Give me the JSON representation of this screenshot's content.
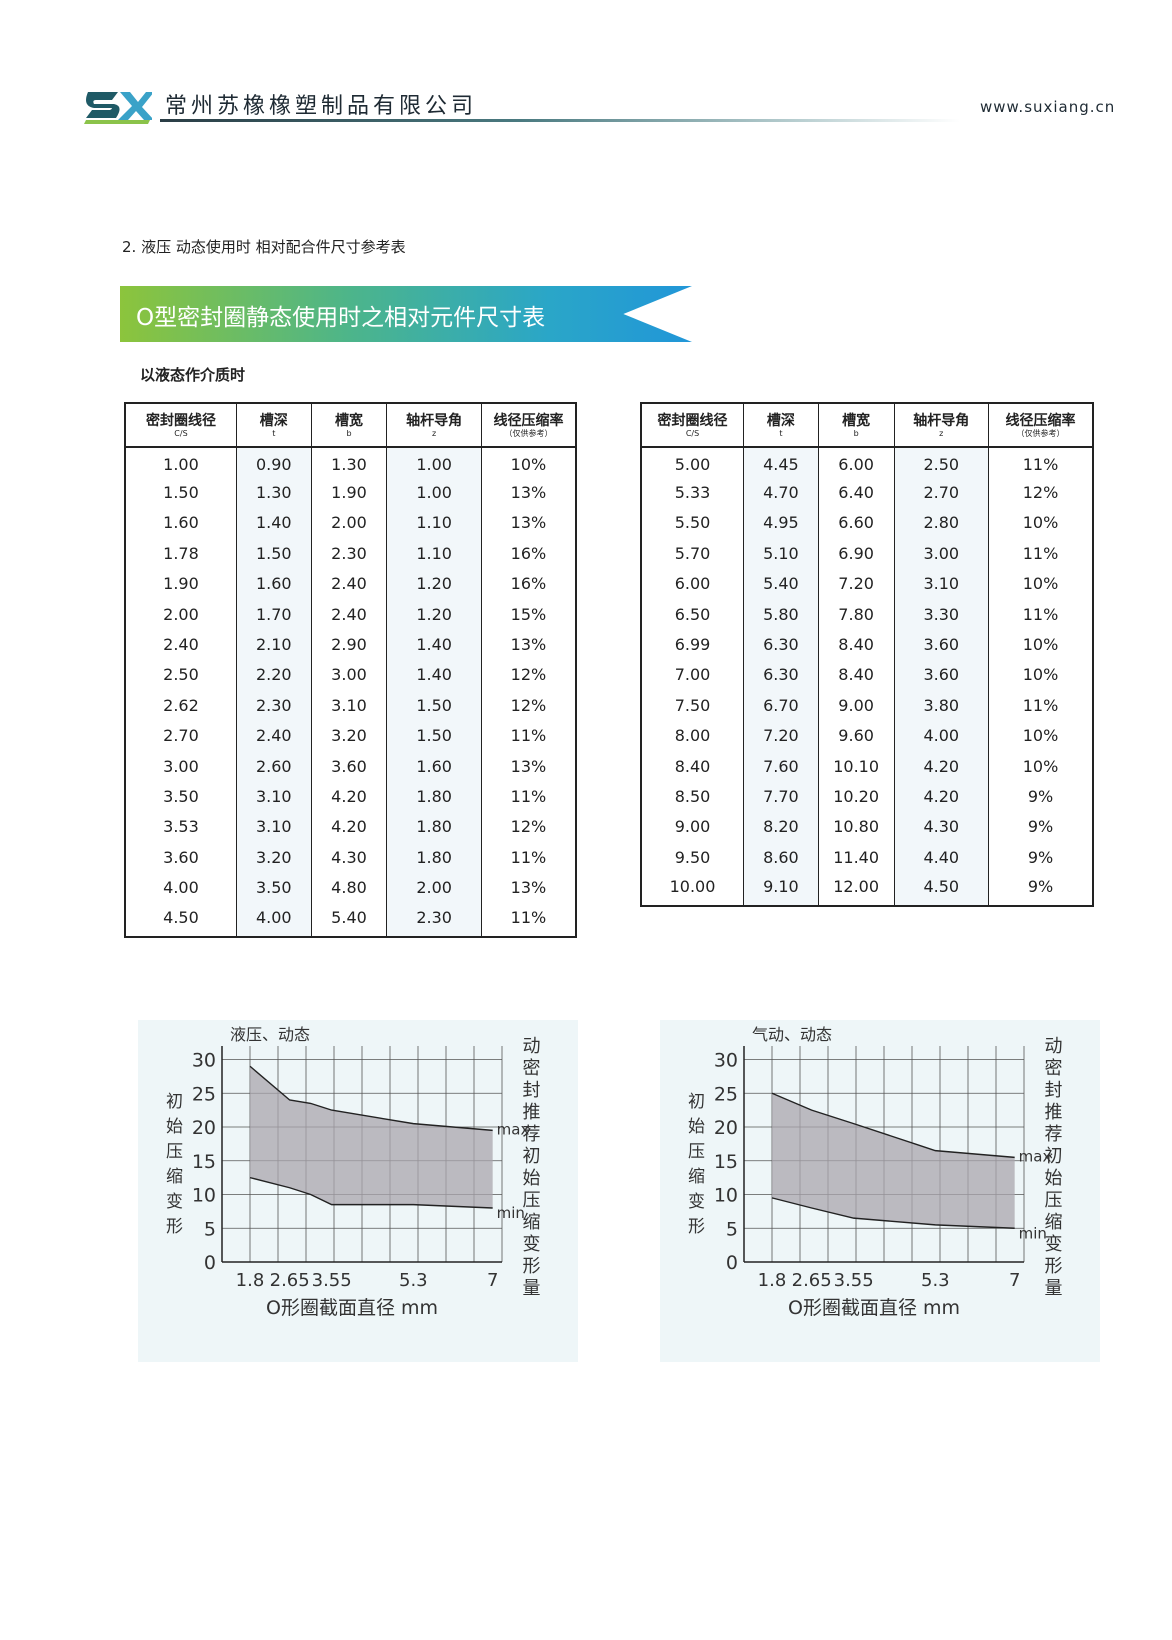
{
  "header": {
    "logo_text": "SX",
    "company_name": "常州苏橡橡塑制品有限公司",
    "website": "www.suxiang.cn"
  },
  "section_heading": "2. 液压  动态使用时  相对配合件尺寸参考表",
  "banner_title": "O型密封圈静态使用时之相对元件尺寸表",
  "medium_label": "以液态作介质时",
  "table_headers": [
    {
      "label": "密封圈线径",
      "sub": "C/S"
    },
    {
      "label": "槽深",
      "sub": "t"
    },
    {
      "label": "槽宽",
      "sub": "b"
    },
    {
      "label": "轴杆导角",
      "sub": "z"
    },
    {
      "label": "线径压缩率",
      "sub": "（仅供参考）"
    }
  ],
  "table_left": [
    [
      "1.00",
      "0.90",
      "1.30",
      "1.00",
      "10%"
    ],
    [
      "1.50",
      "1.30",
      "1.90",
      "1.00",
      "13%"
    ],
    [
      "1.60",
      "1.40",
      "2.00",
      "1.10",
      "13%"
    ],
    [
      "1.78",
      "1.50",
      "2.30",
      "1.10",
      "16%"
    ],
    [
      "1.90",
      "1.60",
      "2.40",
      "1.20",
      "16%"
    ],
    [
      "2.00",
      "1.70",
      "2.40",
      "1.20",
      "15%"
    ],
    [
      "2.40",
      "2.10",
      "2.90",
      "1.40",
      "13%"
    ],
    [
      "2.50",
      "2.20",
      "3.00",
      "1.40",
      "12%"
    ],
    [
      "2.62",
      "2.30",
      "3.10",
      "1.50",
      "12%"
    ],
    [
      "2.70",
      "2.40",
      "3.20",
      "1.50",
      "11%"
    ],
    [
      "3.00",
      "2.60",
      "3.60",
      "1.60",
      "13%"
    ],
    [
      "3.50",
      "3.10",
      "4.20",
      "1.80",
      "11%"
    ],
    [
      "3.53",
      "3.10",
      "4.20",
      "1.80",
      "12%"
    ],
    [
      "3.60",
      "3.20",
      "4.30",
      "1.80",
      "11%"
    ],
    [
      "4.00",
      "3.50",
      "4.80",
      "2.00",
      "13%"
    ],
    [
      "4.50",
      "4.00",
      "5.40",
      "2.30",
      "11%"
    ]
  ],
  "table_right": [
    [
      "5.00",
      "4.45",
      "6.00",
      "2.50",
      "11%"
    ],
    [
      "5.33",
      "4.70",
      "6.40",
      "2.70",
      "12%"
    ],
    [
      "5.50",
      "4.95",
      "6.60",
      "2.80",
      "10%"
    ],
    [
      "5.70",
      "5.10",
      "6.90",
      "3.00",
      "11%"
    ],
    [
      "6.00",
      "5.40",
      "7.20",
      "3.10",
      "10%"
    ],
    [
      "6.50",
      "5.80",
      "7.80",
      "3.30",
      "11%"
    ],
    [
      "6.99",
      "6.30",
      "8.40",
      "3.60",
      "10%"
    ],
    [
      "7.00",
      "6.30",
      "8.40",
      "3.60",
      "10%"
    ],
    [
      "7.50",
      "6.70",
      "9.00",
      "3.80",
      "11%"
    ],
    [
      "8.00",
      "7.20",
      "9.60",
      "4.00",
      "10%"
    ],
    [
      "8.40",
      "7.60",
      "10.10",
      "4.20",
      "10%"
    ],
    [
      "8.50",
      "7.70",
      "10.20",
      "4.20",
      "9%"
    ],
    [
      "9.00",
      "8.20",
      "10.80",
      "4.30",
      "9%"
    ],
    [
      "9.50",
      "8.60",
      "11.40",
      "4.40",
      "9%"
    ],
    [
      "10.00",
      "9.10",
      "12.00",
      "4.50",
      "9%"
    ]
  ],
  "colors": {
    "banner_start": "#8cc43c",
    "banner_end": "#2196d8",
    "chart_bg": "#eef6f8",
    "band_fill": "#a9a5ad",
    "grid": "#555555"
  },
  "chart_data": [
    {
      "type": "area",
      "title": "液压、动态",
      "ylabel": "初始压缩变形",
      "right_label": "动密封推荐初始压缩变形量",
      "xlabel": "O形圈截面直径  mm",
      "x_ticks": [
        "1.8",
        "2.65",
        "3.55",
        "5.3",
        "7"
      ],
      "y_ticks": [
        0,
        5,
        10,
        15,
        20,
        25,
        30
      ],
      "ylim": [
        0,
        32
      ],
      "max_label": "max",
      "min_label": "min",
      "series": [
        {
          "name": "max",
          "x": [
            1.8,
            2.65,
            3.1,
            3.55,
            5.3,
            7
          ],
          "values": [
            29,
            24,
            23.5,
            22.5,
            20.5,
            19.5
          ]
        },
        {
          "name": "min",
          "x": [
            1.8,
            2.65,
            3.1,
            3.55,
            5.3,
            7
          ],
          "values": [
            12.5,
            11,
            10,
            8.5,
            8.5,
            8
          ]
        }
      ]
    },
    {
      "type": "area",
      "title": "气动、动态",
      "ylabel": "初始压缩变形",
      "right_label": "动密封推荐初始压缩变形量",
      "xlabel": "O形圈截面直径  mm",
      "x_ticks": [
        "1.8",
        "2.65",
        "3.55",
        "5.3",
        "7"
      ],
      "y_ticks": [
        0,
        5,
        10,
        15,
        20,
        25,
        30
      ],
      "ylim": [
        0,
        32
      ],
      "max_label": "max",
      "min_label": "min",
      "series": [
        {
          "name": "max",
          "x": [
            1.8,
            2.65,
            3.55,
            5.3,
            7
          ],
          "values": [
            25,
            22.5,
            20.5,
            16.5,
            15.5
          ]
        },
        {
          "name": "min",
          "x": [
            1.8,
            2.65,
            3.55,
            5.3,
            7
          ],
          "values": [
            9.5,
            8,
            6.5,
            5.5,
            5
          ]
        }
      ]
    }
  ]
}
